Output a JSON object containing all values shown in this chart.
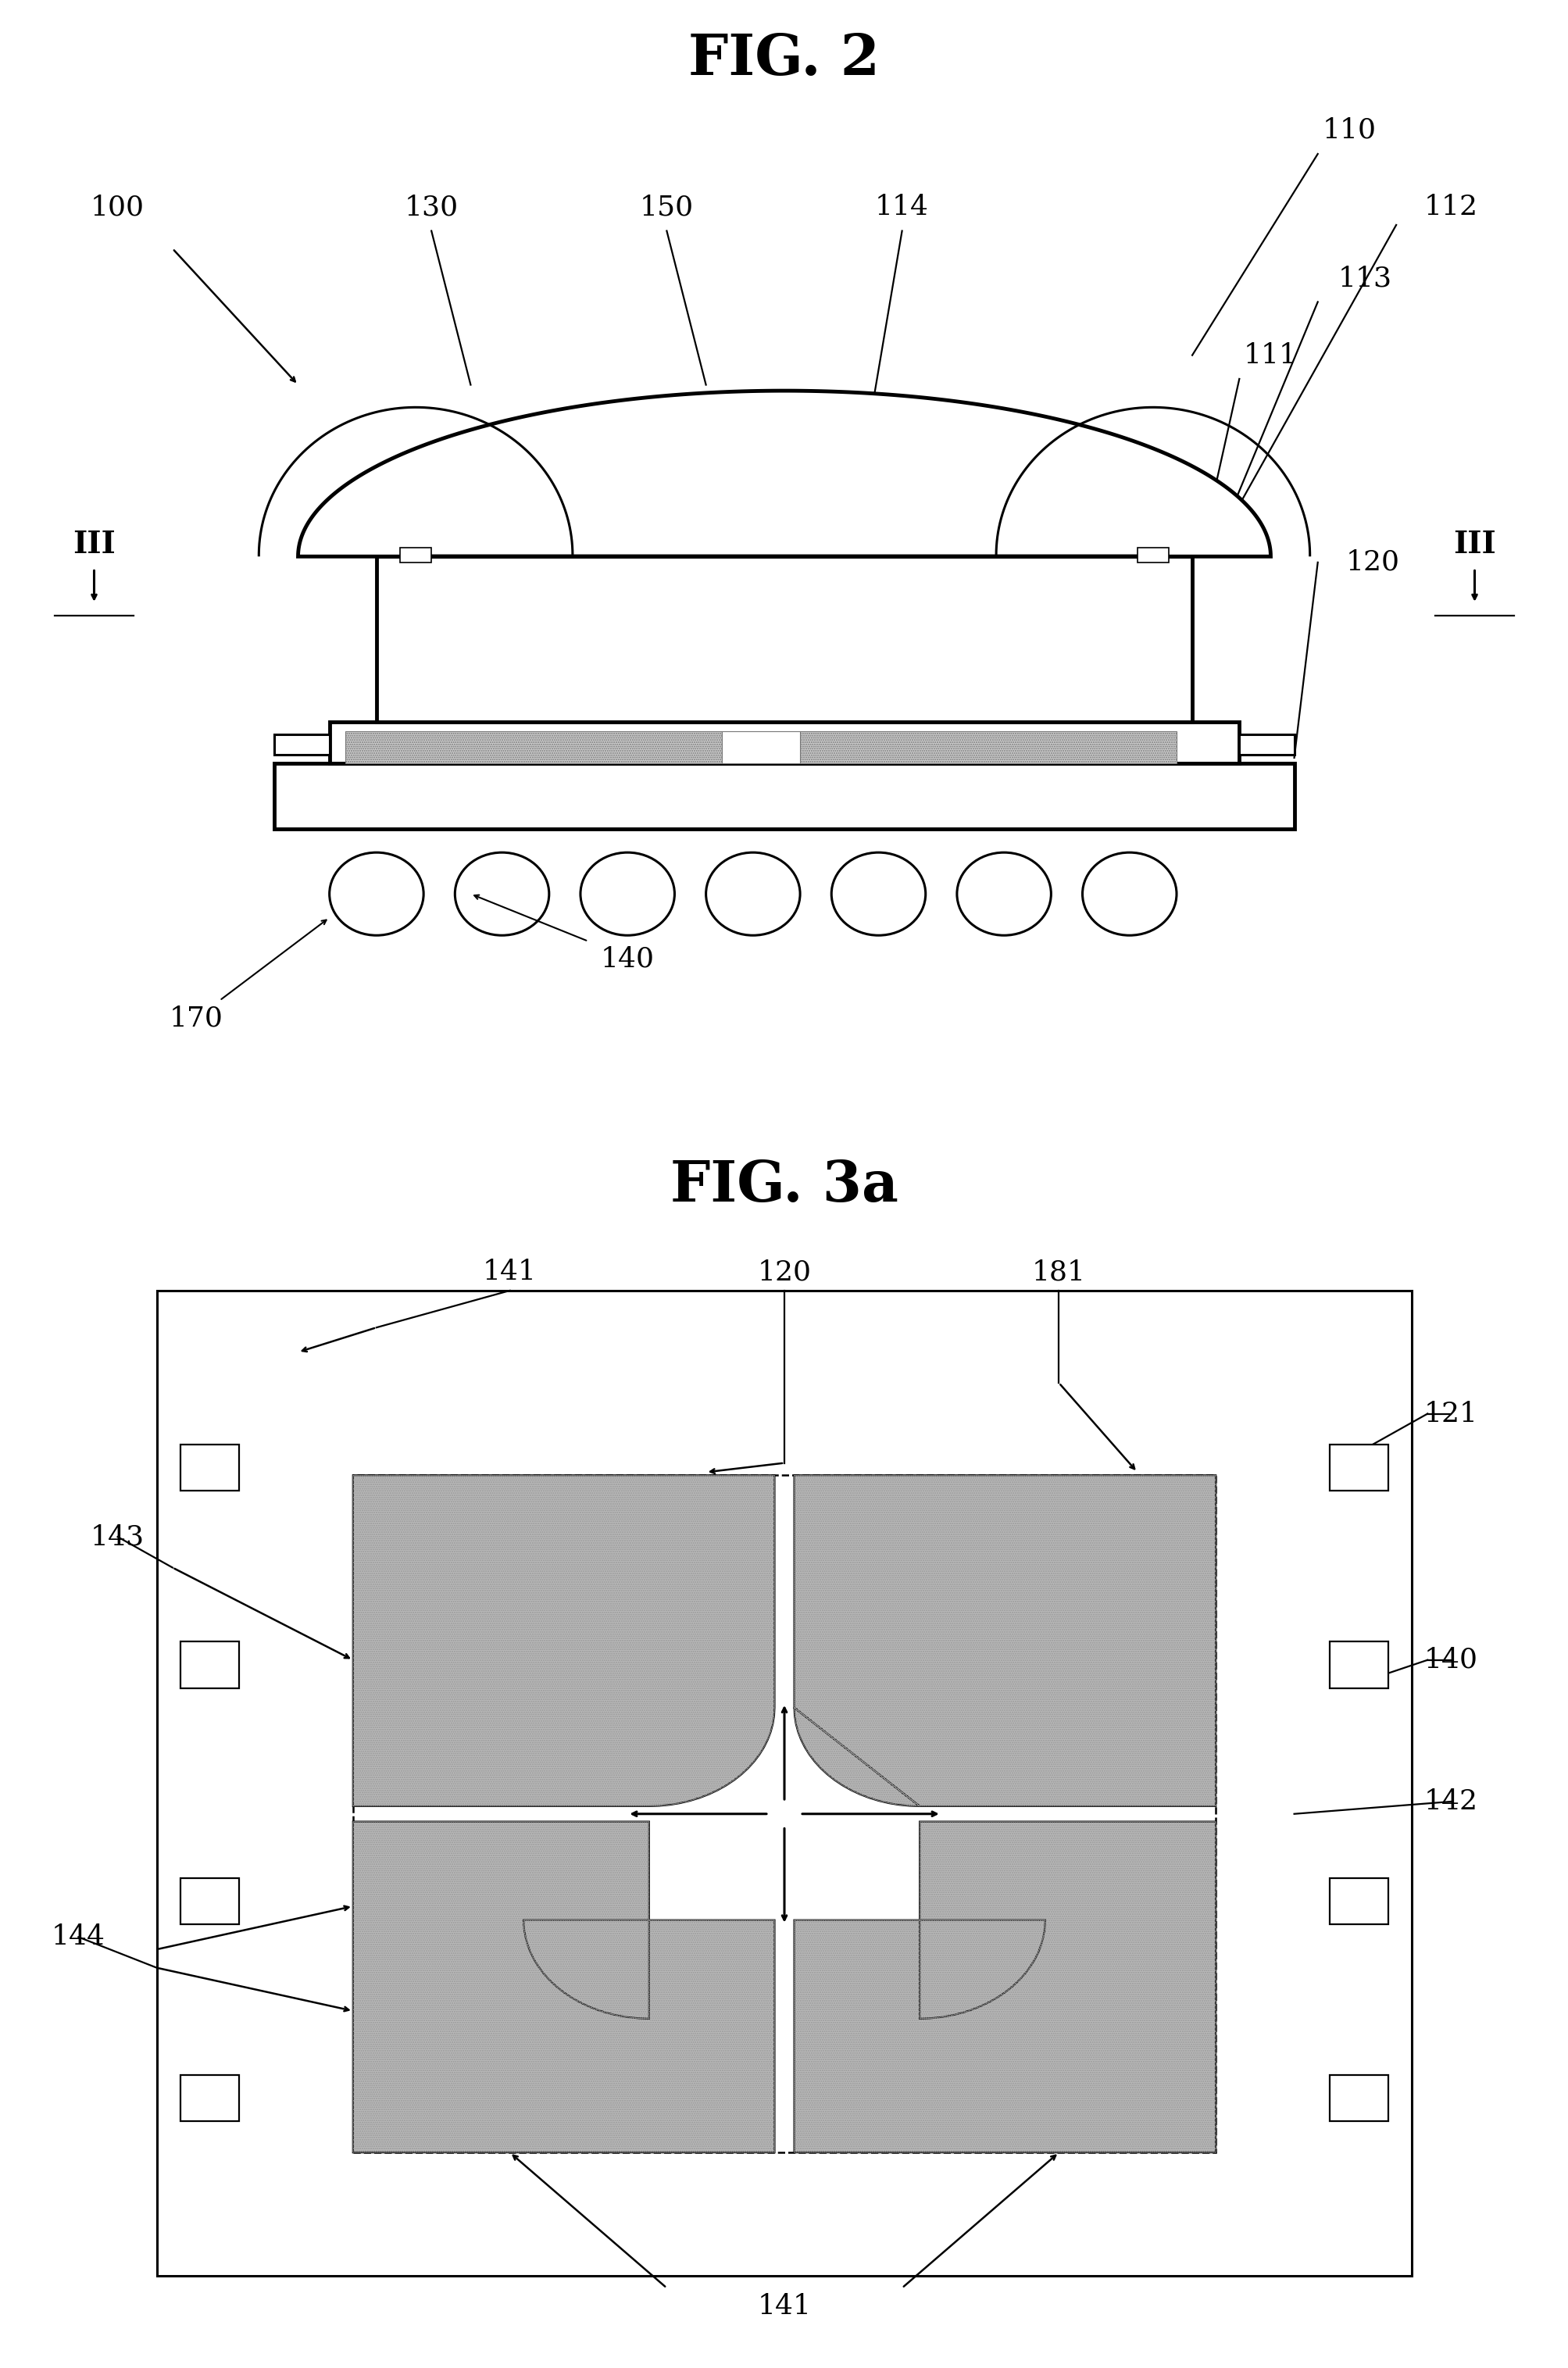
{
  "fig2_title": "FIG. 2",
  "fig3a_title": "FIG. 3a",
  "bg_color": "#ffffff",
  "line_color": "#000000",
  "gray_fill": "#b8b8b8",
  "hatch_color": "#888888"
}
